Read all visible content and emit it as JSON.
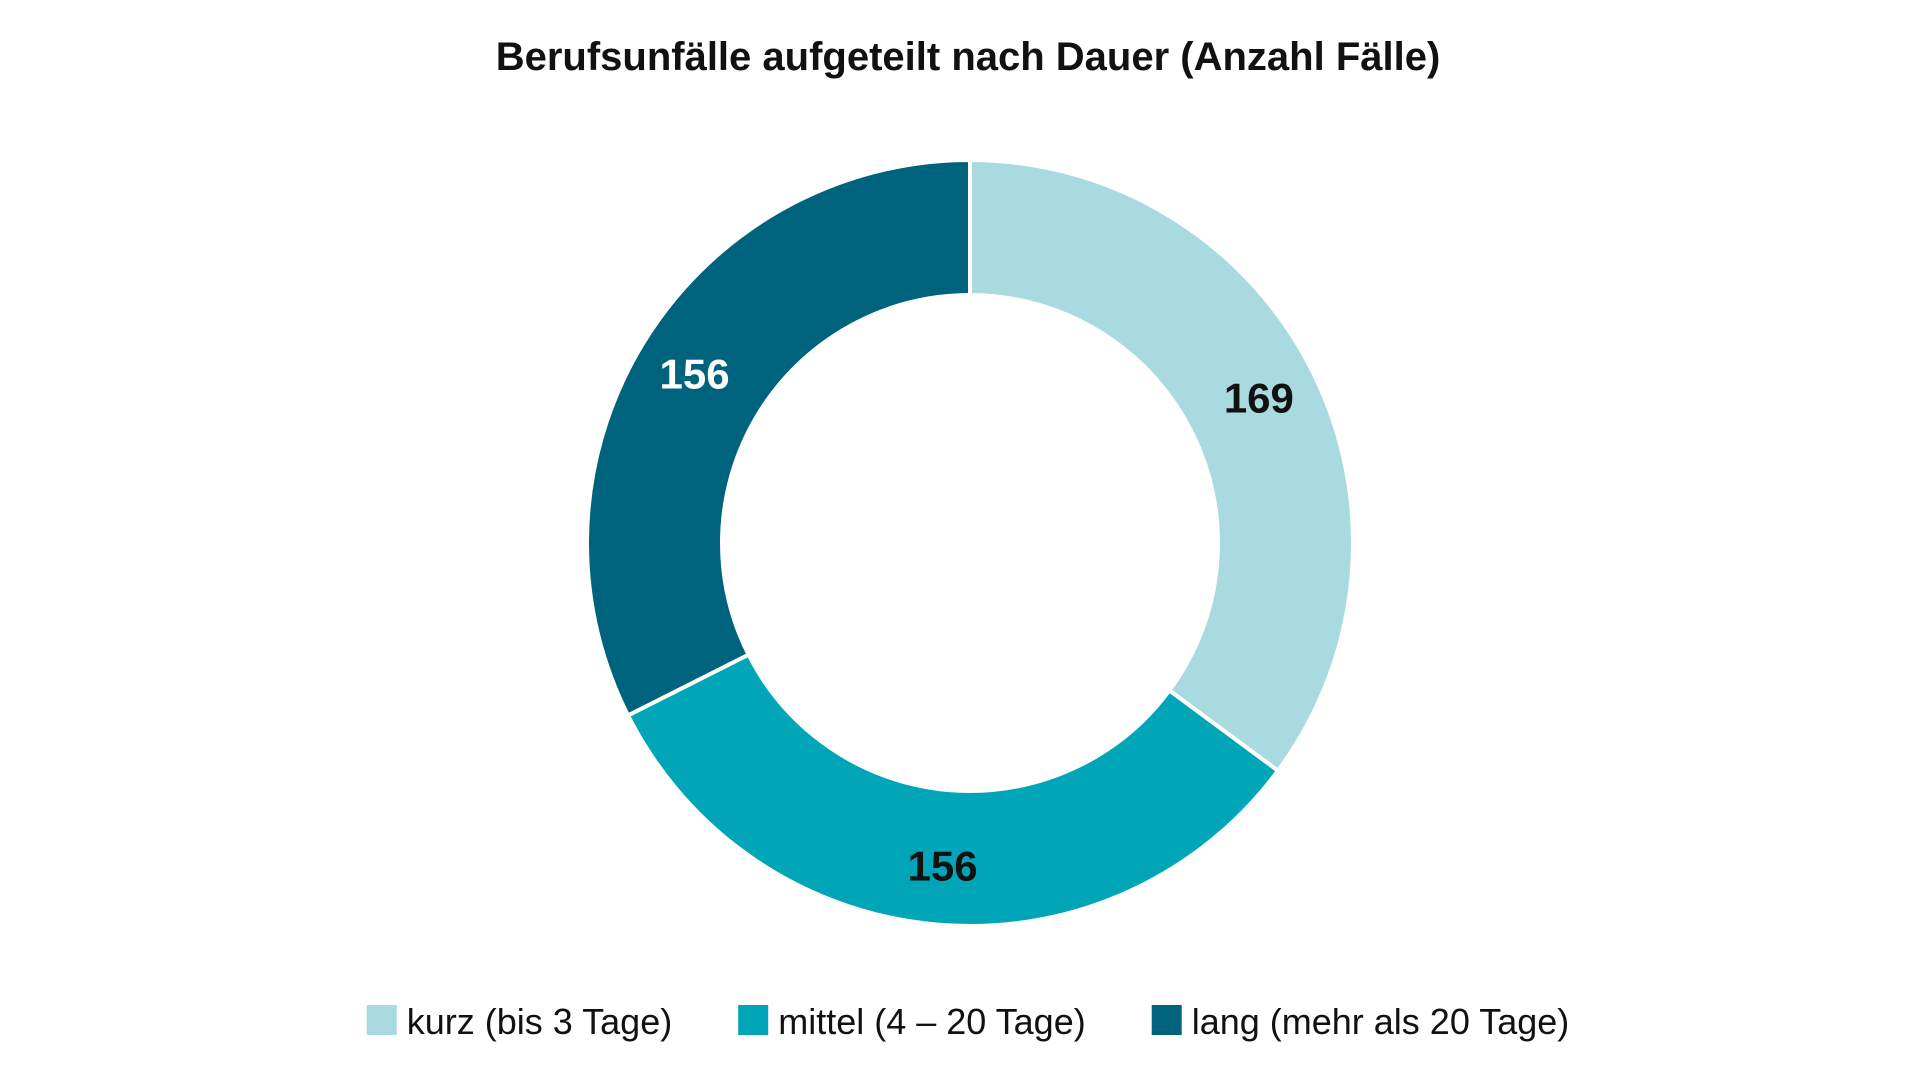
{
  "chart_data": {
    "type": "pie",
    "title": "Berufsunfälle aufgeteilt nach Dauer (Anzahl Fälle)",
    "donut": true,
    "start_angle_deg": 0,
    "direction": "clockwise",
    "legend_position": "bottom",
    "slices": [
      {
        "label": "kurz (bis 3 Tage)",
        "value": 169,
        "value_label": "169",
        "color": "#a8dadf",
        "label_color": "#111111"
      },
      {
        "label": "mittel (4 – 20 Tage)",
        "value": 156,
        "value_label": "156",
        "color": "#00a6b8",
        "label_color": "#111111"
      },
      {
        "label": "lang (mehr als 20 Tage)",
        "value": 156,
        "value_label": "156",
        "color": "#00637d",
        "label_color": "#ffffff"
      }
    ]
  }
}
